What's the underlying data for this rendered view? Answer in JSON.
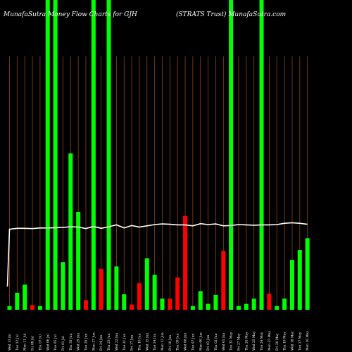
{
  "chart_data": {
    "type": "bar",
    "title_left": "MunafaSutra  Money Flow  Charts for GJH",
    "title_right": "(STRATS Trust) MunafaSutra.com",
    "colors": {
      "background": "#000000",
      "up": "#00ff00",
      "down": "#ff0000",
      "grid": "#8b4513",
      "line": "#ffffff"
    },
    "grid": true,
    "ylim": [
      0,
      100
    ],
    "bars": [
      {
        "label": "Wed 13 Jul",
        "value": 1.2,
        "direction": "up",
        "full": false
      },
      {
        "label": "Tue 12 Jul",
        "value": 5.5,
        "direction": "up",
        "full": false
      },
      {
        "label": "Mon 11 Jul",
        "value": 8.1,
        "direction": "up",
        "full": false
      },
      {
        "label": "Fri 08 Jul",
        "value": 1.5,
        "direction": "down",
        "full": false
      },
      {
        "label": "Thu 07 Jul",
        "value": 1.2,
        "direction": "up",
        "full": false
      },
      {
        "label": "Wed 06 Jul",
        "value": 100,
        "direction": "up",
        "full": true
      },
      {
        "label": "Tue 05 Jul",
        "value": 100,
        "direction": "up",
        "full": true
      },
      {
        "label": "Fri 01 Jul",
        "value": 15.4,
        "direction": "up",
        "full": false
      },
      {
        "label": "Thu 30 Jun",
        "value": 50.5,
        "direction": "up",
        "full": false
      },
      {
        "label": "Wed 29 Jun",
        "value": 31.6,
        "direction": "up",
        "full": false
      },
      {
        "label": "Tue 28 Jun",
        "value": 3.1,
        "direction": "down",
        "full": false
      },
      {
        "label": "Mon 27 Jun",
        "value": 100,
        "direction": "up",
        "full": true
      },
      {
        "label": "Fri 24 Jun",
        "value": 13.2,
        "direction": "down",
        "full": false
      },
      {
        "label": "Thu 23 Jun",
        "value": 100,
        "direction": "up",
        "full": true
      },
      {
        "label": "Wed 22 Jun",
        "value": 14.0,
        "direction": "up",
        "full": false
      },
      {
        "label": "Tue 21 Jun",
        "value": 5.0,
        "direction": "up",
        "full": false
      },
      {
        "label": "Fri 17 Jun",
        "value": 1.7,
        "direction": "down",
        "full": false
      },
      {
        "label": "Thu 16 Jun",
        "value": 8.6,
        "direction": "down",
        "full": false
      },
      {
        "label": "Wed 15 Jun",
        "value": 16.6,
        "direction": "up",
        "full": false
      },
      {
        "label": "Tue 14 Jun",
        "value": 11.3,
        "direction": "up",
        "full": false
      },
      {
        "label": "Mon 13 Jun",
        "value": 3.6,
        "direction": "up",
        "full": false
      },
      {
        "label": "Fri 10 Jun",
        "value": 3.6,
        "direction": "down",
        "full": false
      },
      {
        "label": "Thu 09 Jun",
        "value": 10.4,
        "direction": "down",
        "full": false
      },
      {
        "label": "Wed 08 Jun",
        "value": 30.3,
        "direction": "down",
        "full": false
      },
      {
        "label": "Tue 07 Jun",
        "value": 1.2,
        "direction": "up",
        "full": false
      },
      {
        "label": "Mon 06 Jun",
        "value": 6.0,
        "direction": "up",
        "full": false
      },
      {
        "label": "Fri 03 Jun",
        "value": 1.9,
        "direction": "up",
        "full": false
      },
      {
        "label": "Thu 02 Jun",
        "value": 4.8,
        "direction": "up",
        "full": false
      },
      {
        "label": "Wed 01 Jun",
        "value": 19.0,
        "direction": "down",
        "full": false
      },
      {
        "label": "Tue 31 May",
        "value": 100,
        "direction": "up",
        "full": true
      },
      {
        "label": "Fri 27 May",
        "value": 1.2,
        "direction": "up",
        "full": false
      },
      {
        "label": "Thu 26 May",
        "value": 1.9,
        "direction": "up",
        "full": false
      },
      {
        "label": "Wed 25 May",
        "value": 3.6,
        "direction": "up",
        "full": false
      },
      {
        "label": "Tue 24 May",
        "value": 100,
        "direction": "up",
        "full": true
      },
      {
        "label": "Mon 23 May",
        "value": 5.2,
        "direction": "down",
        "full": false
      },
      {
        "label": "Fri 20 May",
        "value": 1.2,
        "direction": "up",
        "full": false
      },
      {
        "label": "Thu 19 May",
        "value": 3.6,
        "direction": "up",
        "full": false
      },
      {
        "label": "Wed 18 May",
        "value": 16.1,
        "direction": "up",
        "full": false
      },
      {
        "label": "Tue 17 May",
        "value": 19.3,
        "direction": "up",
        "full": false
      },
      {
        "label": "Mon 16 May",
        "value": 23.1,
        "direction": "up",
        "full": false
      }
    ],
    "line": {
      "values": [
        26,
        26.3,
        26.3,
        26.2,
        26.4,
        26.4,
        26.5,
        26.6,
        26.8,
        26.7,
        26.2,
        26.9,
        26.3,
        26.8,
        27.4,
        26.4,
        27.2,
        26.7,
        27.1,
        27.5,
        27.7,
        27.6,
        27.4,
        27.4,
        27.1,
        27.8,
        27.5,
        27.7,
        27.1,
        27.2,
        27.5,
        27.4,
        27.3,
        27.4,
        27.4,
        27.5,
        27.9,
        28.1,
        27.9,
        27.6
      ],
      "start_value": 7.5
    }
  }
}
